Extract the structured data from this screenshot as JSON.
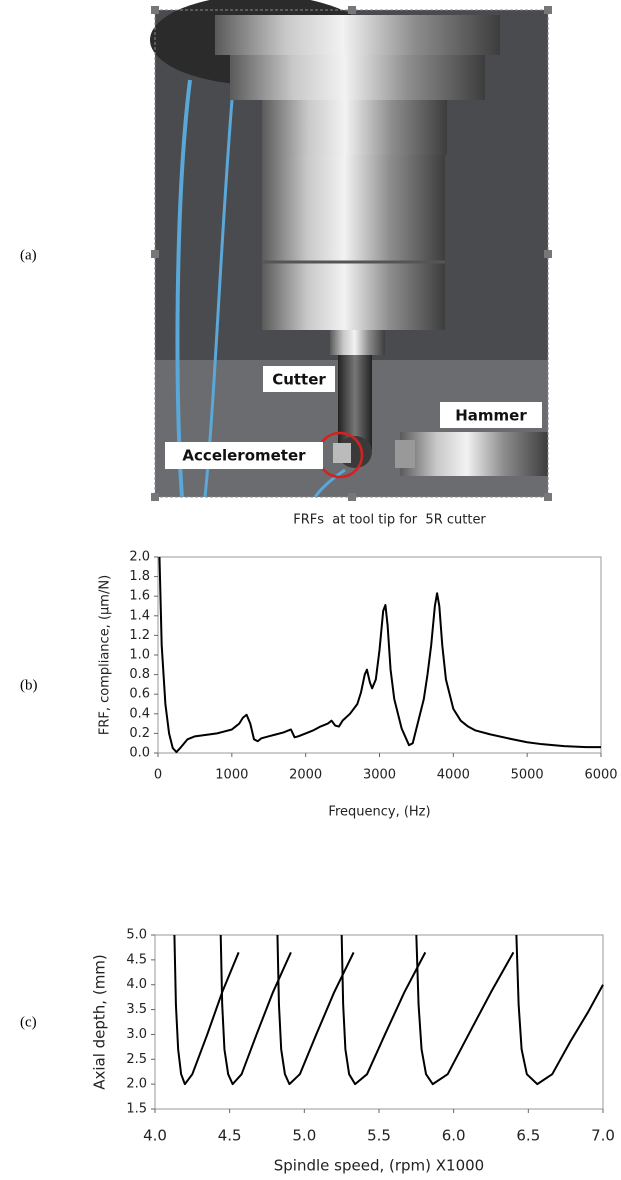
{
  "panels": {
    "a": "(a)",
    "b": "(b)",
    "c": "(c)"
  },
  "photo": {
    "labels": {
      "cutter": "Cutter",
      "hammer": "Hammer",
      "accelerometer": "Accelerometer"
    }
  },
  "chart_data": [
    {
      "type": "line",
      "title": "FRFs  at tool tip for  5R cutter",
      "x_label": "Frequency, (Hz)",
      "y_label": "FRF, compliance, (µm/N)",
      "x": [
        20,
        50,
        100,
        150,
        200,
        250,
        300,
        400,
        500,
        600,
        700,
        800,
        900,
        1000,
        1050,
        1100,
        1150,
        1200,
        1250,
        1300,
        1350,
        1400,
        1500,
        1600,
        1700,
        1800,
        1850,
        1900,
        2000,
        2100,
        2200,
        2300,
        2350,
        2400,
        2450,
        2500,
        2600,
        2700,
        2750,
        2800,
        2830,
        2870,
        2900,
        2950,
        3000,
        3050,
        3080,
        3110,
        3150,
        3200,
        3300,
        3400,
        3450,
        3500,
        3600,
        3650,
        3700,
        3750,
        3780,
        3810,
        3850,
        3900,
        4000,
        4100,
        4200,
        4300,
        4500,
        4800,
        5000,
        5200,
        5500,
        5800,
        6000
      ],
      "series": [
        {
          "color": "#000000",
          "values": [
            2.0,
            1.1,
            0.5,
            0.2,
            0.05,
            0.01,
            0.05,
            0.14,
            0.17,
            0.18,
            0.19,
            0.2,
            0.22,
            0.24,
            0.27,
            0.3,
            0.36,
            0.39,
            0.3,
            0.14,
            0.12,
            0.15,
            0.17,
            0.19,
            0.21,
            0.24,
            0.16,
            0.17,
            0.2,
            0.23,
            0.27,
            0.3,
            0.33,
            0.28,
            0.27,
            0.33,
            0.4,
            0.5,
            0.62,
            0.8,
            0.85,
            0.72,
            0.66,
            0.75,
            1.05,
            1.45,
            1.51,
            1.3,
            0.85,
            0.55,
            0.25,
            0.08,
            0.1,
            0.25,
            0.55,
            0.8,
            1.1,
            1.5,
            1.63,
            1.5,
            1.1,
            0.75,
            0.45,
            0.33,
            0.27,
            0.23,
            0.19,
            0.14,
            0.11,
            0.09,
            0.07,
            0.06,
            0.06
          ]
        }
      ],
      "xlim": [
        0,
        6000
      ],
      "xticks": [
        0,
        1000,
        2000,
        3000,
        4000,
        5000,
        6000
      ],
      "ylim": [
        0,
        2.0
      ],
      "yticks": [
        {
          "value": 0,
          "label": "0.0"
        },
        0.2,
        0.4,
        0.6,
        0.8,
        {
          "value": 1,
          "label": "1.0"
        },
        1.2,
        1.4,
        1.6,
        1.8,
        {
          "value": 2,
          "label": "2.0"
        }
      ]
    },
    {
      "type": "line",
      "x_label": "Spindle speed, (rpm) X1000",
      "y_label": "Axial depth, (mm)",
      "series": [
        {
          "color": "#000000",
          "x": [
            4.13,
            4.14,
            4.155,
            4.175,
            4.2,
            4.25,
            4.35,
            4.45,
            4.56
          ],
          "values": [
            5.0,
            3.6,
            2.7,
            2.2,
            2.0,
            2.2,
            3.0,
            3.85,
            4.65
          ]
        },
        {
          "color": "#000000",
          "x": [
            4.44,
            4.45,
            4.465,
            4.49,
            4.52,
            4.58,
            4.68,
            4.79,
            4.91
          ],
          "values": [
            5.0,
            3.6,
            2.7,
            2.2,
            2.0,
            2.2,
            3.0,
            3.85,
            4.65
          ]
        },
        {
          "color": "#000000",
          "x": [
            4.82,
            4.83,
            4.845,
            4.87,
            4.9,
            4.97,
            5.08,
            5.2,
            5.33
          ],
          "values": [
            5.0,
            3.6,
            2.7,
            2.2,
            2.0,
            2.2,
            3.0,
            3.85,
            4.65
          ]
        },
        {
          "color": "#000000",
          "x": [
            5.25,
            5.26,
            5.275,
            5.3,
            5.34,
            5.42,
            5.54,
            5.67,
            5.81
          ],
          "values": [
            5.0,
            3.6,
            2.7,
            2.2,
            2.0,
            2.2,
            3.0,
            3.85,
            4.65
          ]
        },
        {
          "color": "#000000",
          "x": [
            5.75,
            5.765,
            5.785,
            5.815,
            5.86,
            5.96,
            6.1,
            6.25,
            6.4
          ],
          "values": [
            5.0,
            3.6,
            2.7,
            2.2,
            2.0,
            2.2,
            3.0,
            3.85,
            4.65
          ]
        },
        {
          "color": "#000000",
          "x": [
            6.42,
            6.435,
            6.455,
            6.49,
            6.56,
            6.66,
            6.78,
            6.9,
            7.0
          ],
          "values": [
            5.0,
            3.6,
            2.7,
            2.2,
            2.0,
            2.2,
            2.85,
            3.45,
            4.0
          ]
        }
      ],
      "xlim": [
        4.0,
        7.0
      ],
      "xticks": [
        {
          "value": 4,
          "label": "4.0"
        },
        4.5,
        {
          "value": 5,
          "label": "5.0"
        },
        5.5,
        {
          "value": 6,
          "label": "6.0"
        },
        6.5,
        {
          "value": 7,
          "label": "7.0"
        }
      ],
      "ylim": [
        1.5,
        5.0
      ],
      "yticks": [
        1.5,
        {
          "value": 2,
          "label": "2.0"
        },
        2.5,
        {
          "value": 3,
          "label": "3.0"
        },
        3.5,
        {
          "value": 4,
          "label": "4.0"
        },
        4.5,
        {
          "value": 5,
          "label": "5.0"
        }
      ]
    }
  ]
}
